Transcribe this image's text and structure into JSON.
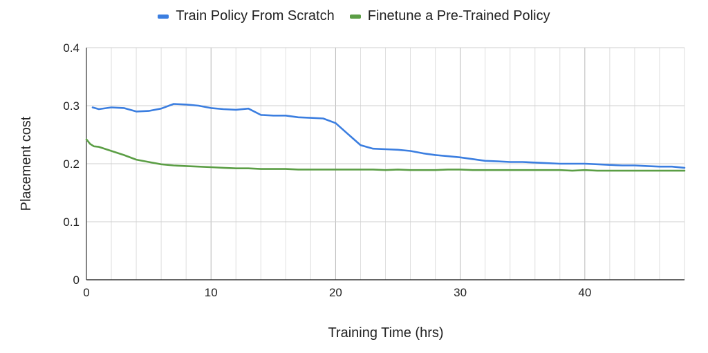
{
  "chart_data": {
    "type": "line",
    "xlabel": "Training Time (hrs)",
    "ylabel": "Placement cost",
    "xlim": [
      0,
      48
    ],
    "ylim": [
      0,
      0.4
    ],
    "x_ticks": [
      "0",
      "10",
      "20",
      "30",
      "40"
    ],
    "y_ticks": [
      "0",
      "0.1",
      "0.2",
      "0.3",
      "0.4"
    ],
    "grid": true,
    "legend_position": "top",
    "series": [
      {
        "name": "Train Policy From Scratch",
        "color": "#3b7ee0",
        "x": [
          0.5,
          1,
          2,
          3,
          4,
          5,
          6,
          7,
          8,
          9,
          10,
          11,
          12,
          13,
          14,
          15,
          16,
          17,
          18,
          19,
          20,
          21,
          22,
          23,
          24,
          25,
          26,
          27,
          28,
          29,
          30,
          31,
          32,
          33,
          34,
          35,
          36,
          37,
          38,
          39,
          40,
          41,
          42,
          43,
          44,
          45,
          46,
          47,
          48
        ],
        "values": [
          0.297,
          0.294,
          0.297,
          0.296,
          0.29,
          0.291,
          0.295,
          0.303,
          0.302,
          0.3,
          0.296,
          0.294,
          0.293,
          0.295,
          0.284,
          0.283,
          0.283,
          0.28,
          0.279,
          0.278,
          0.27,
          0.251,
          0.232,
          0.226,
          0.225,
          0.224,
          0.222,
          0.218,
          0.215,
          0.213,
          0.211,
          0.208,
          0.205,
          0.204,
          0.203,
          0.203,
          0.202,
          0.201,
          0.2,
          0.2,
          0.2,
          0.199,
          0.198,
          0.197,
          0.197,
          0.196,
          0.195,
          0.195,
          0.193
        ]
      },
      {
        "name": "Finetune a Pre-Trained Policy",
        "color": "#5b9e45",
        "x": [
          0,
          0.3,
          0.6,
          1,
          2,
          3,
          4,
          5,
          6,
          7,
          8,
          9,
          10,
          11,
          12,
          13,
          14,
          15,
          16,
          17,
          18,
          19,
          20,
          21,
          22,
          23,
          24,
          25,
          26,
          27,
          28,
          29,
          30,
          31,
          32,
          33,
          34,
          35,
          36,
          37,
          38,
          39,
          40,
          41,
          42,
          43,
          44,
          45,
          46,
          47,
          48
        ],
        "values": [
          0.242,
          0.234,
          0.23,
          0.229,
          0.222,
          0.215,
          0.207,
          0.203,
          0.199,
          0.197,
          0.196,
          0.195,
          0.194,
          0.193,
          0.192,
          0.192,
          0.191,
          0.191,
          0.191,
          0.19,
          0.19,
          0.19,
          0.19,
          0.19,
          0.19,
          0.19,
          0.189,
          0.19,
          0.189,
          0.189,
          0.189,
          0.19,
          0.19,
          0.189,
          0.189,
          0.189,
          0.189,
          0.189,
          0.189,
          0.189,
          0.189,
          0.188,
          0.189,
          0.188,
          0.188,
          0.188,
          0.188,
          0.188,
          0.188,
          0.188,
          0.188
        ]
      }
    ]
  }
}
